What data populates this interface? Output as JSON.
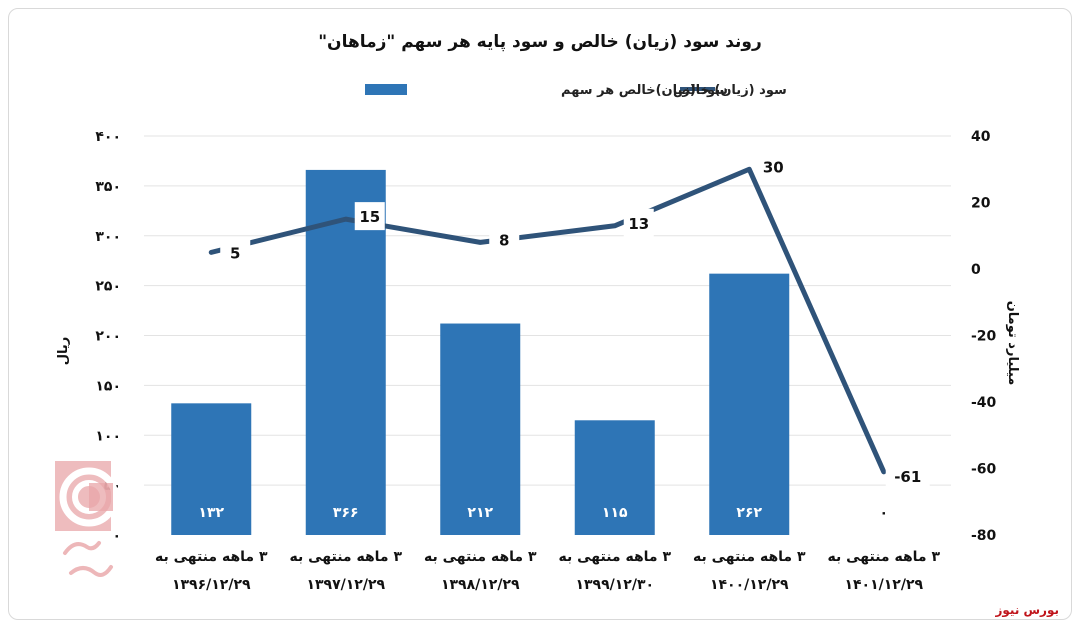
{
  "chart_data": {
    "type": "bar",
    "title": "روند سود (زیان) خالص و سود پایه هر سهم \"زماهان\"",
    "categories": [
      [
        "۳ ماهه منتهی به",
        "۱۳۹۶/۱۲/۲۹"
      ],
      [
        "۳ ماهه منتهی به",
        "۱۳۹۷/۱۲/۲۹"
      ],
      [
        "۳ ماهه منتهی به",
        "۱۳۹۸/۱۲/۲۹"
      ],
      [
        "۳ ماهه منتهی به",
        "۱۳۹۹/۱۲/۳۰"
      ],
      [
        "۳ ماهه منتهی به",
        "۱۴۰۰/۱۲/۲۹"
      ],
      [
        "۳ ماهه منتهی به",
        "۱۴۰۱/۱۲/۲۹"
      ]
    ],
    "series": [
      {
        "name": "سود (زیان)خالص هر سهم",
        "type": "bar",
        "axis": "left",
        "color": "#2e75b6",
        "values": [
          132,
          366,
          212,
          115,
          262,
          0
        ],
        "labels": [
          "۱۳۲",
          "۳۶۶",
          "۲۱۲",
          "۱۱۵",
          "۲۶۲",
          "۰"
        ]
      },
      {
        "name": "سود (زیان) خالص",
        "type": "line",
        "axis": "right",
        "color": "#2f5379",
        "values": [
          5,
          15,
          8,
          13,
          30,
          -61
        ],
        "labels": [
          "5",
          "15",
          "8",
          "13",
          "30",
          "-61"
        ]
      }
    ],
    "y_left": {
      "label": "ریال",
      "range": [
        0,
        400
      ],
      "ticks": [
        0,
        50,
        100,
        150,
        200,
        250,
        300,
        350,
        400
      ],
      "tick_labels": [
        "۰",
        "۵۰",
        "۱۰۰",
        "۱۵۰",
        "۲۰۰",
        "۲۵۰",
        "۳۰۰",
        "۳۵۰",
        "۴۰۰"
      ]
    },
    "y_right": {
      "label": "میلیارد تومان",
      "range": [
        -80,
        40
      ],
      "ticks": [
        40,
        20,
        0,
        -20,
        -40,
        -60,
        -80
      ],
      "tick_labels": [
        "40",
        "20",
        "0",
        "-20",
        "-40",
        "-60",
        "-80"
      ]
    },
    "grid": true,
    "legend_position": "top"
  },
  "source": "بورس نیوز",
  "watermark_icon": "bourse-news-logo-icon"
}
